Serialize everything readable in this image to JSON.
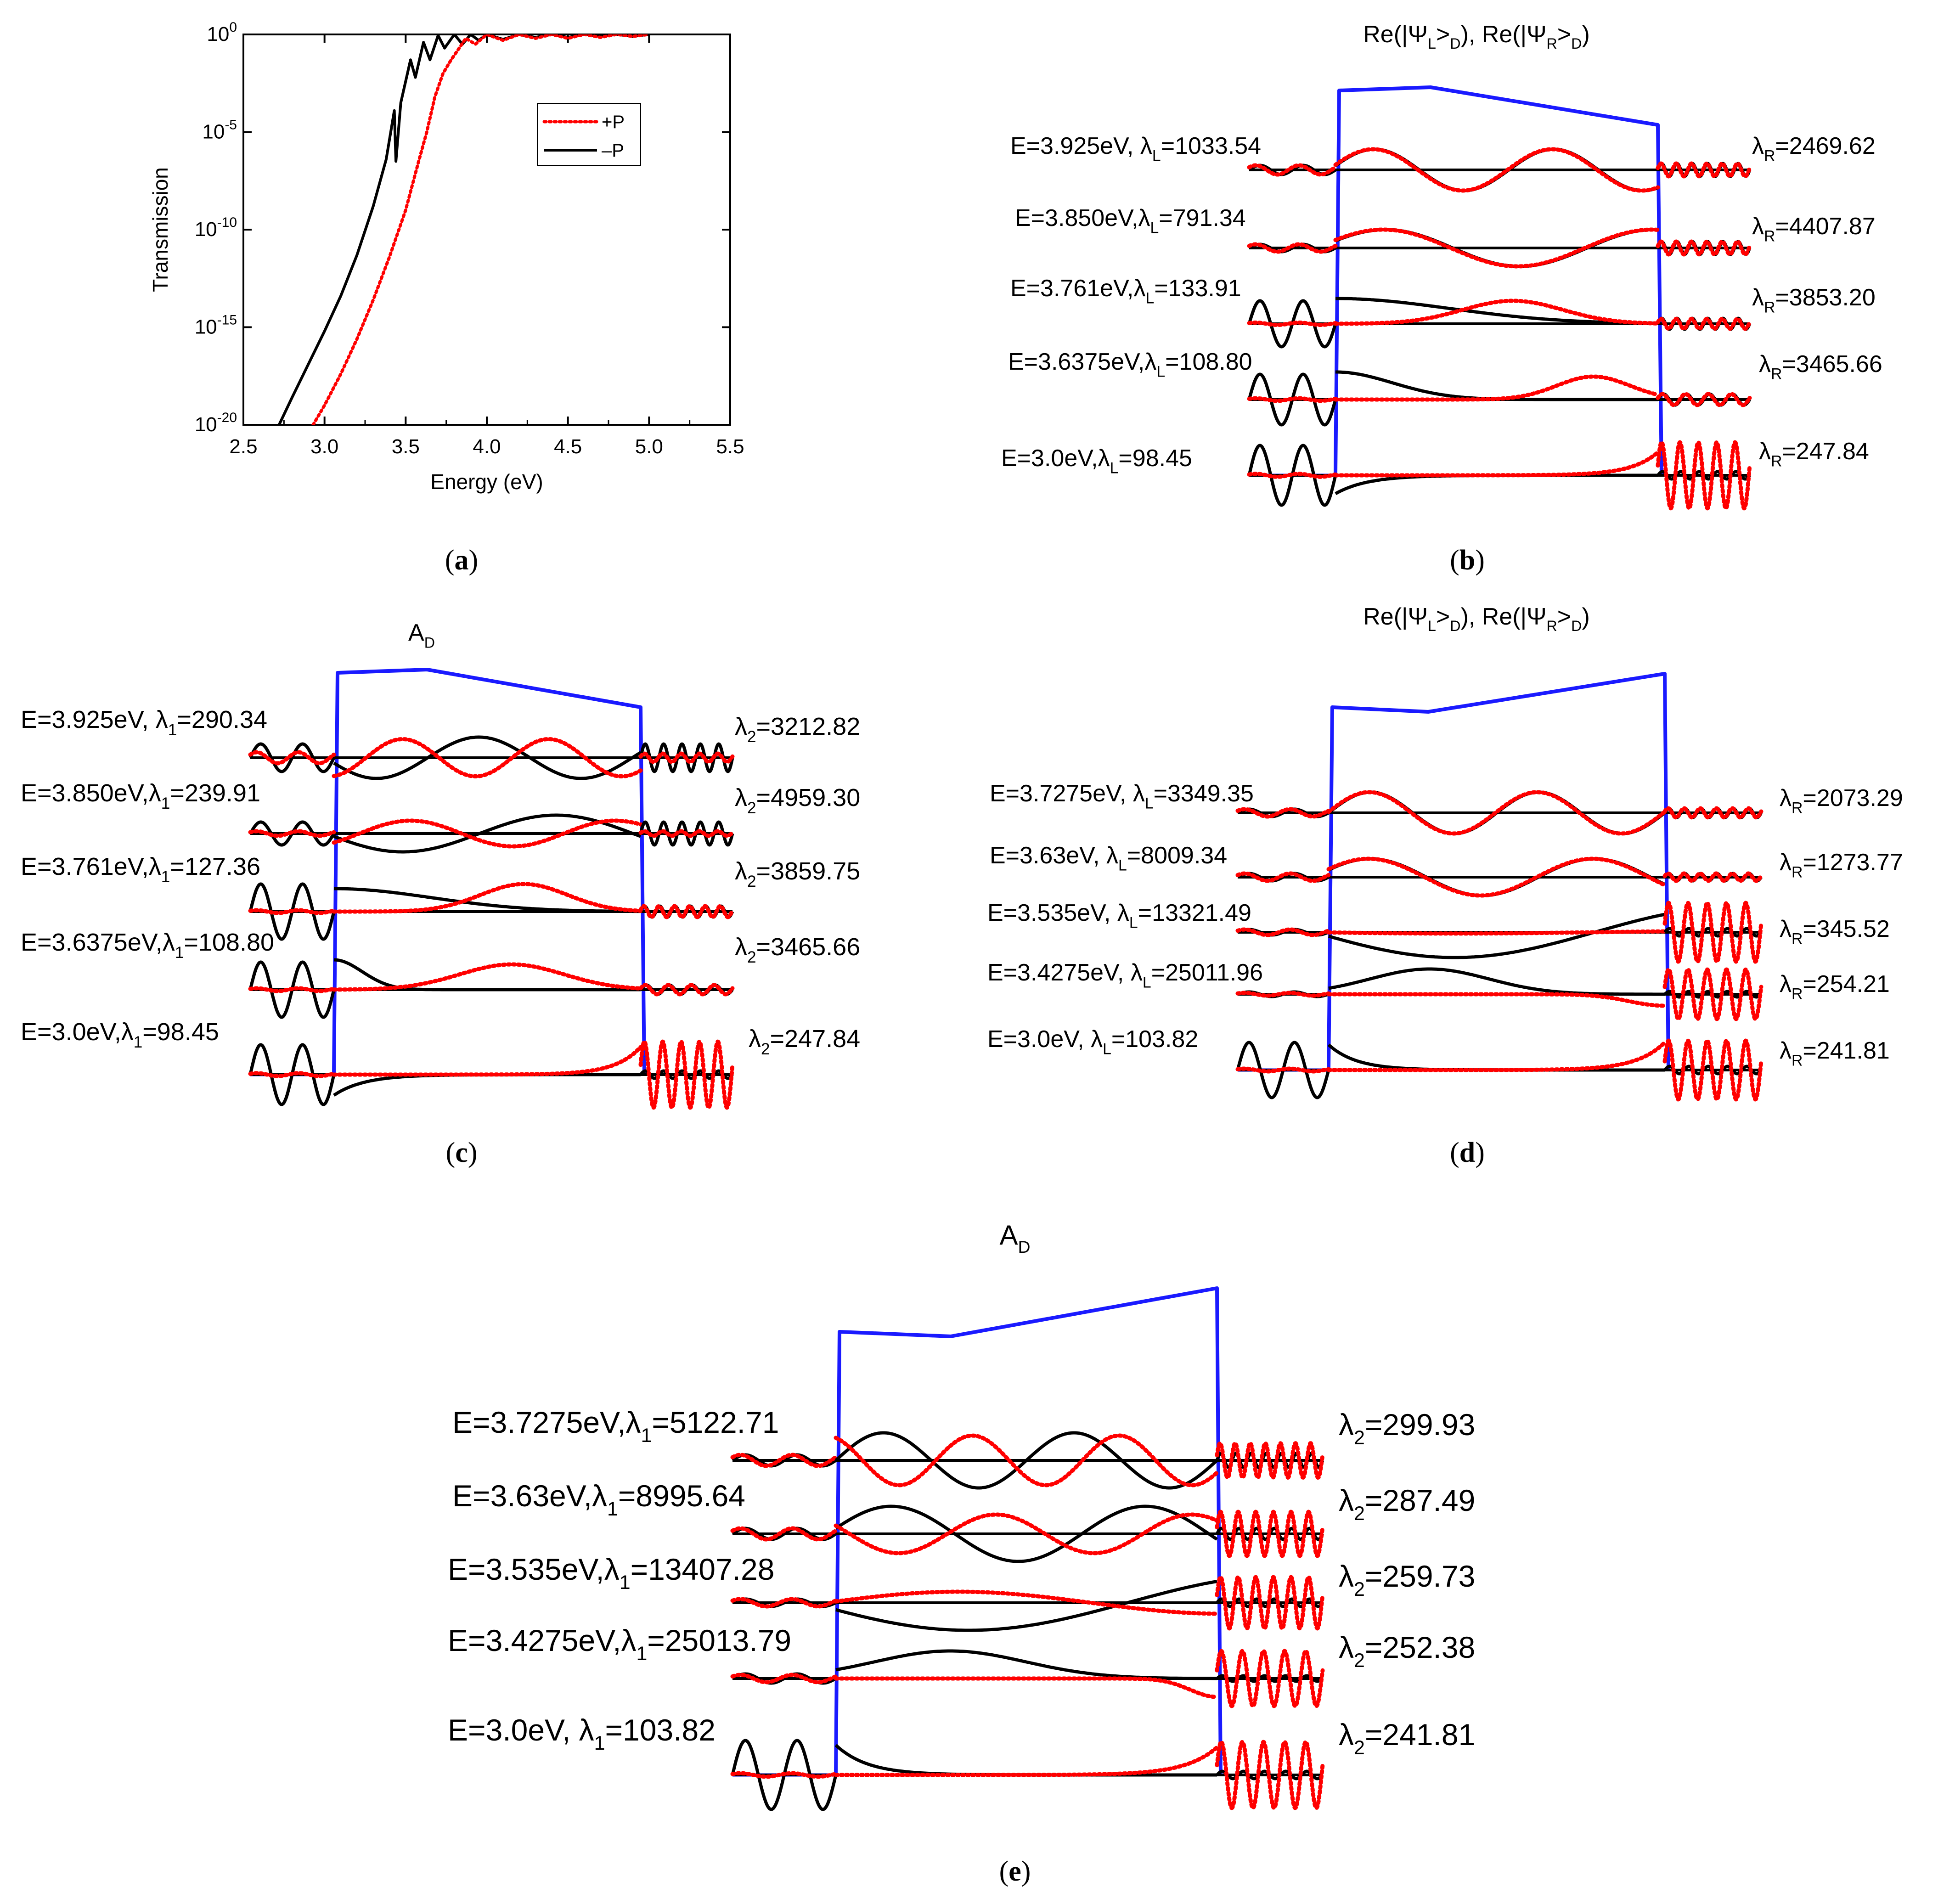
{
  "panel_labels": [
    "a",
    "b",
    "c",
    "d",
    "e"
  ],
  "chart_data": [
    {
      "panel": "a",
      "type": "line",
      "xlabel": "Energy (eV)",
      "ylabel": "Transmission",
      "xlim": [
        2.5,
        5.5
      ],
      "ylim_log10": [
        -20,
        0
      ],
      "x_ticks": [
        "2.5",
        "3.0",
        "3.5",
        "4.0",
        "4.5",
        "5.0",
        "5.5"
      ],
      "y_ticks": [
        {
          "base": "10",
          "exp": "0"
        },
        {
          "base": "10",
          "exp": "-5"
        },
        {
          "base": "10",
          "exp": "-10"
        },
        {
          "base": "10",
          "exp": "-15"
        },
        {
          "base": "10",
          "exp": "-20"
        }
      ],
      "legend": [
        {
          "label": "+P",
          "color": "#ff0000",
          "style": "dotted"
        },
        {
          "label": "–P",
          "color": "#000000",
          "style": "solid"
        }
      ],
      "series": [
        {
          "name": "–P",
          "color": "#000000",
          "style": "solid",
          "points": [
            [
              2.72,
              -20
            ],
            [
              2.8,
              -18.6
            ],
            [
              2.9,
              -16.9
            ],
            [
              3.0,
              -15.2
            ],
            [
              3.1,
              -13.4
            ],
            [
              3.2,
              -11.3
            ],
            [
              3.3,
              -8.8
            ],
            [
              3.38,
              -6.4
            ],
            [
              3.43,
              -3.9
            ],
            [
              3.44,
              -6.5
            ],
            [
              3.47,
              -3.5
            ],
            [
              3.53,
              -1.3
            ],
            [
              3.56,
              -2.2
            ],
            [
              3.61,
              -0.4
            ],
            [
              3.65,
              -1.3
            ],
            [
              3.7,
              -0.05
            ],
            [
              3.74,
              -0.7
            ],
            [
              3.8,
              0
            ],
            [
              3.85,
              -0.5
            ],
            [
              3.9,
              0
            ],
            [
              3.95,
              -0.3
            ],
            [
              4.0,
              0
            ],
            [
              4.1,
              -0.25
            ],
            [
              4.2,
              0
            ],
            [
              4.3,
              -0.15
            ],
            [
              4.4,
              0
            ],
            [
              4.5,
              -0.15
            ],
            [
              4.6,
              0
            ],
            [
              4.7,
              -0.1
            ],
            [
              4.8,
              0
            ],
            [
              4.9,
              -0.1
            ],
            [
              5.0,
              0
            ]
          ]
        },
        {
          "name": "+P",
          "color": "#ff0000",
          "style": "dotted",
          "points": [
            [
              2.93,
              -20
            ],
            [
              3.0,
              -19.0
            ],
            [
              3.1,
              -17.4
            ],
            [
              3.2,
              -15.6
            ],
            [
              3.3,
              -13.6
            ],
            [
              3.4,
              -11.4
            ],
            [
              3.5,
              -9.0
            ],
            [
              3.58,
              -6.5
            ],
            [
              3.63,
              -5.0
            ],
            [
              3.68,
              -3.2
            ],
            [
              3.73,
              -2.0
            ],
            [
              3.78,
              -1.3
            ],
            [
              3.83,
              -0.7
            ],
            [
              3.87,
              -0.2
            ],
            [
              3.93,
              -0.5
            ],
            [
              4.0,
              0
            ],
            [
              4.1,
              -0.3
            ],
            [
              4.2,
              0
            ],
            [
              4.3,
              -0.2
            ],
            [
              4.4,
              0
            ],
            [
              4.5,
              -0.2
            ],
            [
              4.6,
              0
            ],
            [
              4.7,
              -0.15
            ],
            [
              4.8,
              0
            ],
            [
              4.9,
              -0.1
            ],
            [
              5.0,
              0
            ]
          ]
        }
      ]
    },
    {
      "panel": "b",
      "type": "line",
      "title": {
        "pre": "Re(|Ψ",
        "sub1": "L",
        "mid": ">",
        "sub2": "D",
        "sep": "), Re(|Ψ",
        "sub3": "R",
        "mid2": ">",
        "sub4": "D",
        "post": ")"
      },
      "rows": [
        {
          "energy": "E=3.925eV, λ",
          "left_sub": "L",
          "left_val": "=1033.54",
          "right_pre": "λ",
          "right_sub": "R",
          "right_val": "=2469.62"
        },
        {
          "energy": "E=3.850eV,λ",
          "left_sub": "L",
          "left_val": "=791.34",
          "right_pre": "λ",
          "right_sub": "R",
          "right_val": "=4407.87"
        },
        {
          "energy": "E=3.761eV,λ",
          "left_sub": "L",
          "left_val": "=133.91",
          "right_pre": "λ",
          "right_sub": "R",
          "right_val": "=3853.20"
        },
        {
          "energy": "E=3.6375eV,λ",
          "left_sub": "L",
          "left_val": "=108.80",
          "right_pre": "λ",
          "right_sub": "R",
          "right_val": "=3465.66"
        },
        {
          "energy": "E=3.0eV,λ",
          "left_sub": "L",
          "left_val": "=98.45",
          "right_pre": "λ",
          "right_sub": "R",
          "right_val": "=247.84"
        }
      ]
    },
    {
      "panel": "c",
      "type": "line",
      "title": {
        "pre": "A",
        "sub": "D"
      },
      "rows": [
        {
          "energy": "E=3.925eV, λ",
          "left_sub": "1",
          "left_val": "=290.34",
          "right_pre": "λ",
          "right_sub": "2",
          "right_val": "=3212.82"
        },
        {
          "energy": "E=3.850eV,λ",
          "left_sub": "1",
          "left_val": "=239.91",
          "right_pre": "λ",
          "right_sub": "2",
          "right_val": "=4959.30"
        },
        {
          "energy": "E=3.761eV,λ",
          "left_sub": "1",
          "left_val": "=127.36",
          "right_pre": "λ",
          "right_sub": "2",
          "right_val": "=3859.75"
        },
        {
          "energy": "E=3.6375eV,λ",
          "left_sub": "1",
          "left_val": "=108.80",
          "right_pre": "λ",
          "right_sub": "2",
          "right_val": "=3465.66"
        },
        {
          "energy": "E=3.0eV,λ",
          "left_sub": "1",
          "left_val": "=98.45",
          "right_pre": "λ",
          "right_sub": "2",
          "right_val": "=247.84"
        }
      ]
    },
    {
      "panel": "d",
      "type": "line",
      "title": {
        "pre": "Re(|Ψ",
        "sub1": "L",
        "mid": ">",
        "sub2": "D",
        "sep": "), Re(|Ψ",
        "sub3": "R",
        "mid2": ">",
        "sub4": "D",
        "post": ")"
      },
      "rows": [
        {
          "energy": "E=3.7275eV, λ",
          "left_sub": "L",
          "left_val": "=3349.35",
          "right_pre": "λ",
          "right_sub": "R",
          "right_val": "=2073.29"
        },
        {
          "energy": "E=3.63eV, λ",
          "left_sub": "L",
          "left_val": "=8009.34",
          "right_pre": "λ",
          "right_sub": "R",
          "right_val": "=1273.77"
        },
        {
          "energy": "E=3.535eV, λ",
          "left_sub": "L",
          "left_val": "=13321.49",
          "right_pre": "λ",
          "right_sub": "R",
          "right_val": "=345.52"
        },
        {
          "energy": "E=3.4275eV, λ",
          "left_sub": "L",
          "left_val": "=25011.96",
          "right_pre": "λ",
          "right_sub": "R",
          "right_val": "=254.21"
        },
        {
          "energy": "E=3.0eV, λ",
          "left_sub": "L",
          "left_val": "=103.82",
          "right_pre": "λ",
          "right_sub": "R",
          "right_val": "=241.81"
        }
      ]
    },
    {
      "panel": "e",
      "type": "line",
      "title": {
        "pre": "A",
        "sub": "D"
      },
      "rows": [
        {
          "energy": "E=3.7275eV,λ",
          "left_sub": "1",
          "left_val": "=5122.71",
          "right_pre": "λ",
          "right_sub": "2",
          "right_val": "=299.93"
        },
        {
          "energy": "E=3.63eV,λ",
          "left_sub": "1",
          "left_val": "=8995.64",
          "right_pre": "λ",
          "right_sub": "2",
          "right_val": "=287.49"
        },
        {
          "energy": "E=3.535eV,λ",
          "left_sub": "1",
          "left_val": "=13407.28",
          "right_pre": "λ",
          "right_sub": "2",
          "right_val": "=259.73"
        },
        {
          "energy": "E=3.4275eV,λ",
          "left_sub": "1",
          "left_val": "=25013.79",
          "right_pre": "λ",
          "right_sub": "2",
          "right_val": "=252.38"
        },
        {
          "energy": "E=3.0eV, λ",
          "left_sub": "1",
          "left_val": "=103.82",
          "right_pre": "λ",
          "right_sub": "2",
          "right_val": "=241.81"
        }
      ]
    }
  ],
  "colors": {
    "barrier": "#1a1aff",
    "solid": "#000000",
    "dotted": "#ff0000"
  }
}
